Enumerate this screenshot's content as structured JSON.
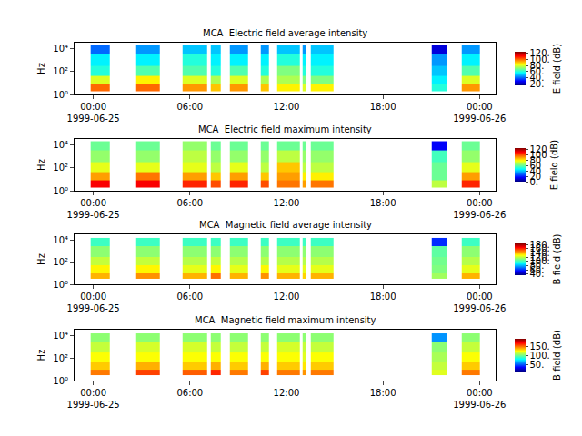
{
  "chart_data": [
    {
      "type": "heatmap",
      "title": "MCA  Electric field average intensity",
      "ylabel": "Hz",
      "colorbar_title": "E field (dB)",
      "log": "y",
      "x": [
        "1999-06-24 23:50",
        "1999-06-25 01:00",
        "1999-06-25 02:40",
        "1999-06-25 04:08",
        "1999-06-25 05:33",
        "1999-06-25 07:04",
        "1999-06-25 07:18",
        "1999-06-25 07:55",
        "1999-06-25 08:30",
        "1999-06-25 09:37",
        "1999-06-25 10:25",
        "1999-06-25 10:55",
        "1999-06-25 11:26",
        "1999-06-25 12:51",
        "1999-06-25 13:00",
        "1999-06-25 13:15",
        "1999-06-25 13:30",
        "1999-06-25 14:56",
        "1999-06-25 21:03",
        "1999-06-25 21:58",
        "1999-06-25 22:55",
        "1999-06-26 00:00"
      ],
      "y": [
        2,
        8,
        40,
        300,
        3000,
        20000
      ],
      "z": [
        [
          100,
          null,
          100,
          null,
          95,
          null,
          90,
          null,
          95,
          null,
          90,
          null,
          85,
          null,
          80,
          null,
          85,
          null,
          60,
          null,
          95
        ],
        [
          80,
          null,
          85,
          null,
          80,
          null,
          75,
          null,
          80,
          null,
          75,
          null,
          75,
          null,
          70,
          null,
          70,
          null,
          55,
          null,
          80
        ],
        [
          60,
          null,
          65,
          null,
          65,
          null,
          60,
          null,
          65,
          null,
          60,
          null,
          70,
          null,
          60,
          null,
          60,
          null,
          50,
          null,
          65
        ],
        [
          55,
          null,
          55,
          null,
          60,
          null,
          55,
          null,
          55,
          null,
          55,
          null,
          60,
          null,
          55,
          null,
          55,
          null,
          45,
          null,
          55
        ],
        [
          40,
          null,
          45,
          null,
          50,
          null,
          50,
          null,
          45,
          null,
          45,
          null,
          50,
          null,
          45,
          null,
          50,
          null,
          25,
          null,
          45
        ]
      ],
      "zlim": [
        15,
        125
      ],
      "zticks": [
        {
          "value": 20,
          "label": "20."
        },
        {
          "value": 40,
          "label": "40."
        },
        {
          "value": 60,
          "label": "60."
        },
        {
          "value": 80,
          "label": "80."
        },
        {
          "value": 100,
          "label": "100."
        },
        {
          "value": 120,
          "label": "120."
        }
      ],
      "xlim": [
        "1999-06-24 22:50",
        "1999-06-26 01:00"
      ],
      "xticks": [
        {
          "value": "1999-06-25 00:00",
          "label": "00:00\n1999-06-25"
        },
        {
          "value": "1999-06-25 06:00",
          "label": "06:00"
        },
        {
          "value": "1999-06-25 12:00",
          "label": "12:00"
        },
        {
          "value": "1999-06-25 18:00",
          "label": "18:00"
        },
        {
          "value": "1999-06-26 00:00",
          "label": "00:00\n1999-06-26"
        }
      ],
      "ylim": [
        1,
        31623
      ],
      "yticks": [
        {
          "value": 1,
          "label": "10⁰"
        },
        {
          "value": 100,
          "label": "10²"
        },
        {
          "value": 10000,
          "label": "10⁴"
        }
      ]
    },
    {
      "type": "heatmap",
      "title": "MCA  Electric field maximum intensity",
      "ylabel": "Hz",
      "colorbar_title": "E field (dB)",
      "log": "y",
      "x": [
        "1999-06-24 23:50",
        "1999-06-25 01:00",
        "1999-06-25 02:40",
        "1999-06-25 04:08",
        "1999-06-25 05:33",
        "1999-06-25 07:04",
        "1999-06-25 07:18",
        "1999-06-25 07:55",
        "1999-06-25 08:30",
        "1999-06-25 09:37",
        "1999-06-25 10:25",
        "1999-06-25 10:55",
        "1999-06-25 11:26",
        "1999-06-25 12:51",
        "1999-06-25 13:00",
        "1999-06-25 13:15",
        "1999-06-25 13:30",
        "1999-06-25 14:56",
        "1999-06-25 21:03",
        "1999-06-25 21:58",
        "1999-06-25 22:55",
        "1999-06-26 00:00"
      ],
      "y": [
        2,
        8,
        40,
        300,
        3000,
        20000
      ],
      "z": [
        [
          110,
          null,
          110,
          null,
          105,
          null,
          100,
          null,
          105,
          null,
          100,
          null,
          95,
          null,
          90,
          null,
          95,
          null,
          70,
          null,
          105
        ],
        [
          90,
          null,
          95,
          null,
          90,
          null,
          85,
          null,
          90,
          null,
          85,
          null,
          90,
          null,
          80,
          null,
          80,
          null,
          60,
          null,
          90
        ],
        [
          75,
          null,
          75,
          null,
          75,
          null,
          70,
          null,
          75,
          null,
          70,
          null,
          85,
          null,
          70,
          null,
          70,
          null,
          60,
          null,
          75
        ],
        [
          65,
          null,
          65,
          null,
          70,
          null,
          65,
          null,
          65,
          null,
          65,
          null,
          70,
          null,
          65,
          null,
          65,
          null,
          55,
          null,
          65
        ],
        [
          60,
          null,
          60,
          null,
          65,
          null,
          60,
          null,
          60,
          null,
          60,
          null,
          60,
          null,
          60,
          null,
          60,
          null,
          15,
          null,
          60
        ]
      ],
      "zlim": [
        0,
        125
      ],
      "zticks": [
        {
          "value": 0,
          "label": "0."
        },
        {
          "value": 20,
          "label": "20"
        },
        {
          "value": 40,
          "label": "40"
        },
        {
          "value": 60,
          "label": "60"
        },
        {
          "value": 80,
          "label": "80"
        },
        {
          "value": 100,
          "label": "100"
        },
        {
          "value": 120,
          "label": "120"
        }
      ],
      "xlim": [
        "1999-06-24 22:50",
        "1999-06-26 01:00"
      ],
      "xticks": [
        {
          "value": "1999-06-25 00:00",
          "label": "00:00\n1999-06-25"
        },
        {
          "value": "1999-06-25 06:00",
          "label": "06:00"
        },
        {
          "value": "1999-06-25 12:00",
          "label": "12:00"
        },
        {
          "value": "1999-06-25 18:00",
          "label": "18:00"
        },
        {
          "value": "1999-06-26 00:00",
          "label": "00:00\n1999-06-26"
        }
      ],
      "ylim": [
        1,
        31623
      ],
      "yticks": [
        {
          "value": 1,
          "label": "10⁰"
        },
        {
          "value": 100,
          "label": "10²"
        },
        {
          "value": 10000,
          "label": "10⁴"
        }
      ]
    },
    {
      "type": "heatmap",
      "title": "MCA  Magnetic field average intensity",
      "ylabel": "Hz",
      "colorbar_title": "B field (dB)",
      "log": "y",
      "x": [
        "1999-06-24 23:50",
        "1999-06-25 01:00",
        "1999-06-25 02:40",
        "1999-06-25 04:08",
        "1999-06-25 05:33",
        "1999-06-25 07:04",
        "1999-06-25 07:18",
        "1999-06-25 07:55",
        "1999-06-25 08:30",
        "1999-06-25 09:37",
        "1999-06-25 10:25",
        "1999-06-25 10:55",
        "1999-06-25 11:26",
        "1999-06-25 12:51",
        "1999-06-25 13:00",
        "1999-06-25 13:15",
        "1999-06-25 13:30",
        "1999-06-25 14:56",
        "1999-06-25 21:03",
        "1999-06-25 21:58",
        "1999-06-25 22:55",
        "1999-06-26 00:00"
      ],
      "y": [
        3,
        10,
        50,
        300,
        3000,
        15000
      ],
      "z": [
        [
          140,
          null,
          145,
          null,
          140,
          null,
          150,
          null,
          140,
          null,
          145,
          null,
          140,
          null,
          135,
          null,
          140,
          null,
          115,
          null,
          140
        ],
        [
          130,
          null,
          130,
          null,
          125,
          null,
          130,
          null,
          125,
          null,
          130,
          null,
          125,
          null,
          125,
          null,
          125,
          null,
          110,
          null,
          125
        ],
        [
          120,
          null,
          120,
          null,
          118,
          null,
          120,
          null,
          118,
          null,
          118,
          null,
          118,
          null,
          118,
          null,
          118,
          null,
          108,
          null,
          118
        ],
        [
          112,
          null,
          112,
          null,
          112,
          null,
          112,
          null,
          112,
          null,
          112,
          null,
          112,
          null,
          112,
          null,
          112,
          null,
          105,
          null,
          112
        ],
        [
          100,
          null,
          100,
          null,
          100,
          null,
          100,
          null,
          100,
          null,
          100,
          null,
          100,
          null,
          100,
          null,
          100,
          null,
          60,
          null,
          100
        ]
      ],
      "zlim": [
        35,
        185
      ],
      "zticks": [
        {
          "value": 40,
          "label": "40."
        },
        {
          "value": 60,
          "label": "60."
        },
        {
          "value": 80,
          "label": "80."
        },
        {
          "value": 100,
          "label": "100."
        },
        {
          "value": 120,
          "label": "120."
        },
        {
          "value": 140,
          "label": "140."
        },
        {
          "value": 160,
          "label": "160."
        },
        {
          "value": 180,
          "label": "180."
        }
      ],
      "xlim": [
        "1999-06-24 22:50",
        "1999-06-26 01:00"
      ],
      "xticks": [
        {
          "value": "1999-06-25 00:00",
          "label": "00:00\n1999-06-25"
        },
        {
          "value": "1999-06-25 06:00",
          "label": "06:00"
        },
        {
          "value": "1999-06-25 12:00",
          "label": "12:00"
        },
        {
          "value": "1999-06-25 18:00",
          "label": "18:00"
        },
        {
          "value": "1999-06-26 00:00",
          "label": "00:00\n1999-06-26"
        }
      ],
      "ylim": [
        1,
        31623
      ],
      "yticks": [
        {
          "value": 1,
          "label": "10⁰"
        },
        {
          "value": 100,
          "label": "10²"
        },
        {
          "value": 10000,
          "label": "10⁴"
        }
      ]
    },
    {
      "type": "heatmap",
      "title": "MCA  Magnetic field maximum intensity",
      "ylabel": "Hz",
      "colorbar_title": "B field (dB)",
      "log": "y",
      "x": [
        "1999-06-24 23:50",
        "1999-06-25 01:00",
        "1999-06-25 02:40",
        "1999-06-25 04:08",
        "1999-06-25 05:33",
        "1999-06-25 07:04",
        "1999-06-25 07:18",
        "1999-06-25 07:55",
        "1999-06-25 08:30",
        "1999-06-25 09:37",
        "1999-06-25 10:25",
        "1999-06-25 10:55",
        "1999-06-25 11:26",
        "1999-06-25 12:51",
        "1999-06-25 13:00",
        "1999-06-25 13:15",
        "1999-06-25 13:30",
        "1999-06-25 14:56",
        "1999-06-25 21:03",
        "1999-06-25 21:58",
        "1999-06-25 22:55",
        "1999-06-26 00:00"
      ],
      "y": [
        3,
        10,
        50,
        300,
        3000,
        15000
      ],
      "z": [
        [
          150,
          null,
          160,
          null,
          155,
          null,
          165,
          null,
          150,
          null,
          160,
          null,
          150,
          null,
          145,
          null,
          150,
          null,
          120,
          null,
          150
        ],
        [
          135,
          null,
          140,
          null,
          135,
          null,
          140,
          null,
          135,
          null,
          140,
          null,
          135,
          null,
          130,
          null,
          135,
          null,
          115,
          null,
          135
        ],
        [
          125,
          null,
          125,
          null,
          125,
          null,
          125,
          null,
          125,
          null,
          125,
          null,
          125,
          null,
          120,
          null,
          125,
          null,
          110,
          null,
          125
        ],
        [
          115,
          null,
          118,
          null,
          118,
          null,
          115,
          null,
          115,
          null,
          115,
          null,
          118,
          null,
          115,
          null,
          115,
          null,
          105,
          null,
          115
        ],
        [
          105,
          null,
          105,
          null,
          105,
          null,
          105,
          null,
          105,
          null,
          105,
          null,
          105,
          null,
          105,
          null,
          105,
          null,
          60,
          null,
          105
        ]
      ],
      "zlim": [
        10,
        195
      ],
      "zticks": [
        {
          "value": 50,
          "label": "50."
        },
        {
          "value": 100,
          "label": "100."
        },
        {
          "value": 150,
          "label": "150."
        }
      ],
      "xlim": [
        "1999-06-24 22:50",
        "1999-06-26 01:00"
      ],
      "xticks": [
        {
          "value": "1999-06-25 00:00",
          "label": "00:00\n1999-06-25"
        },
        {
          "value": "1999-06-25 06:00",
          "label": "06:00"
        },
        {
          "value": "1999-06-25 12:00",
          "label": "12:00"
        },
        {
          "value": "1999-06-25 18:00",
          "label": "18:00"
        },
        {
          "value": "1999-06-26 00:00",
          "label": "00:00\n1999-06-26"
        }
      ],
      "ylim": [
        1,
        31623
      ],
      "yticks": [
        {
          "value": 1,
          "label": "10⁰"
        },
        {
          "value": 100,
          "label": "10²"
        },
        {
          "value": 10000,
          "label": "10⁴"
        }
      ]
    }
  ]
}
